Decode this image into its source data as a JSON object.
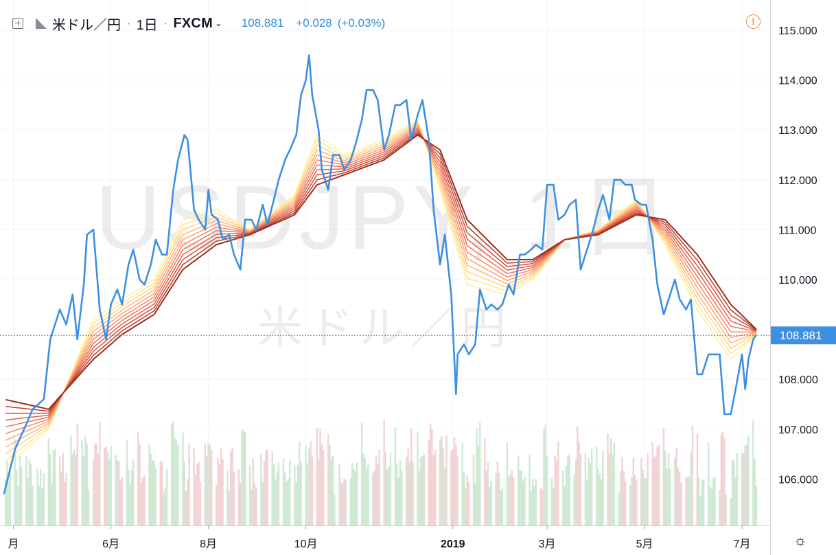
{
  "header": {
    "symbol_name": "米ドル／円",
    "interval": "1日",
    "exchange": "FXCM",
    "last_price": "108.881",
    "change": "+0.028",
    "change_pct": "(+0.03%)"
  },
  "watermark": {
    "ticker": "USDJPY, 1日",
    "name": "米ドル／円"
  },
  "icons": [
    "add-compare-icon",
    "flag-icon",
    "chevron-down-icon",
    "warning-icon",
    "settings-icon"
  ],
  "colors": {
    "price_line": "#3d8fe3",
    "last_price_label_bg": "#3d8fe3",
    "volume_up": "#cfe8d2",
    "volume_down": "#f2d3d3",
    "ribbon": [
      "#fff0a0",
      "#ffe58c",
      "#ffd184",
      "#ffb77a",
      "#ff9f72",
      "#fa8866",
      "#ee7258",
      "#e06048",
      "#cf4e38",
      "#b83c28",
      "#9a2e1c"
    ]
  },
  "chart_data": {
    "type": "line",
    "title": "",
    "xlabel": "",
    "ylabel": "",
    "ylim": [
      105.3,
      115.4
    ],
    "y_ticks": [
      "115.000",
      "114.000",
      "113.000",
      "112.000",
      "111.000",
      "110.000",
      "108.000",
      "107.000",
      "106.000"
    ],
    "last_value_label": "108.881",
    "x_ticks": [
      "月",
      "6月",
      "8月",
      "10月",
      "2019",
      "3月",
      "5月",
      "7月"
    ],
    "x_tick_dates": [
      "2018-04-01",
      "2018-06-01",
      "2018-08-01",
      "2018-10-01",
      "2019-01-01",
      "2019-03-01",
      "2019-05-01",
      "2019-07-01"
    ],
    "x_range": [
      "2018-03-27",
      "2019-07-10"
    ],
    "series": [
      {
        "kind": "price",
        "points": [
          [
            "2018-03-26",
            105.7
          ],
          [
            "2018-04-02",
            106.6
          ],
          [
            "2018-04-09",
            107.1
          ],
          [
            "2018-04-13",
            107.4
          ],
          [
            "2018-04-20",
            107.6
          ],
          [
            "2018-04-24",
            108.8
          ],
          [
            "2018-04-30",
            109.4
          ],
          [
            "2018-05-04",
            109.1
          ],
          [
            "2018-05-08",
            109.7
          ],
          [
            "2018-05-11",
            108.8
          ],
          [
            "2018-05-15",
            109.9
          ],
          [
            "2018-05-17",
            110.9
          ],
          [
            "2018-05-21",
            111.0
          ],
          [
            "2018-05-23",
            110.2
          ],
          [
            "2018-05-25",
            109.4
          ],
          [
            "2018-05-29",
            108.8
          ],
          [
            "2018-06-01",
            109.5
          ],
          [
            "2018-06-05",
            109.8
          ],
          [
            "2018-06-08",
            109.5
          ],
          [
            "2018-06-12",
            110.3
          ],
          [
            "2018-06-15",
            110.6
          ],
          [
            "2018-06-19",
            110.0
          ],
          [
            "2018-06-22",
            109.9
          ],
          [
            "2018-06-26",
            110.3
          ],
          [
            "2018-06-29",
            110.8
          ],
          [
            "2018-07-03",
            110.5
          ],
          [
            "2018-07-06",
            110.5
          ],
          [
            "2018-07-10",
            111.8
          ],
          [
            "2018-07-13",
            112.4
          ],
          [
            "2018-07-17",
            112.9
          ],
          [
            "2018-07-19",
            112.8
          ],
          [
            "2018-07-23",
            111.4
          ],
          [
            "2018-07-26",
            111.2
          ],
          [
            "2018-07-30",
            111.0
          ],
          [
            "2018-08-01",
            111.8
          ],
          [
            "2018-08-03",
            111.3
          ],
          [
            "2018-08-07",
            111.2
          ],
          [
            "2018-08-10",
            110.8
          ],
          [
            "2018-08-14",
            110.9
          ],
          [
            "2018-08-17",
            110.5
          ],
          [
            "2018-08-21",
            110.2
          ],
          [
            "2018-08-24",
            111.2
          ],
          [
            "2018-08-28",
            111.2
          ],
          [
            "2018-08-31",
            111.0
          ],
          [
            "2018-09-04",
            111.5
          ],
          [
            "2018-09-07",
            111.1
          ],
          [
            "2018-09-11",
            111.6
          ],
          [
            "2018-09-14",
            112.0
          ],
          [
            "2018-09-18",
            112.4
          ],
          [
            "2018-09-21",
            112.6
          ],
          [
            "2018-09-25",
            112.9
          ],
          [
            "2018-09-28",
            113.7
          ],
          [
            "2018-10-01",
            114.0
          ],
          [
            "2018-10-03",
            114.5
          ],
          [
            "2018-10-05",
            113.7
          ],
          [
            "2018-10-09",
            113.0
          ],
          [
            "2018-10-11",
            112.2
          ],
          [
            "2018-10-15",
            111.8
          ],
          [
            "2018-10-18",
            112.5
          ],
          [
            "2018-10-22",
            112.5
          ],
          [
            "2018-10-25",
            112.2
          ],
          [
            "2018-10-29",
            112.4
          ],
          [
            "2018-11-01",
            112.7
          ],
          [
            "2018-11-05",
            113.2
          ],
          [
            "2018-11-08",
            113.8
          ],
          [
            "2018-11-12",
            113.8
          ],
          [
            "2018-11-15",
            113.6
          ],
          [
            "2018-11-19",
            112.6
          ],
          [
            "2018-11-22",
            112.9
          ],
          [
            "2018-11-26",
            113.5
          ],
          [
            "2018-11-29",
            113.5
          ],
          [
            "2018-12-03",
            113.6
          ],
          [
            "2018-12-06",
            112.8
          ],
          [
            "2018-12-10",
            113.3
          ],
          [
            "2018-12-13",
            113.6
          ],
          [
            "2018-12-17",
            112.8
          ],
          [
            "2018-12-20",
            111.4
          ],
          [
            "2018-12-24",
            110.3
          ],
          [
            "2018-12-27",
            110.9
          ],
          [
            "2018-12-31",
            109.7
          ],
          [
            "2019-01-03",
            107.7
          ],
          [
            "2019-01-04",
            108.5
          ],
          [
            "2019-01-08",
            108.7
          ],
          [
            "2019-01-11",
            108.5
          ],
          [
            "2019-01-15",
            108.7
          ],
          [
            "2019-01-18",
            109.8
          ],
          [
            "2019-01-22",
            109.4
          ],
          [
            "2019-01-25",
            109.5
          ],
          [
            "2019-01-29",
            109.4
          ],
          [
            "2019-02-01",
            109.5
          ],
          [
            "2019-02-05",
            109.9
          ],
          [
            "2019-02-08",
            109.7
          ],
          [
            "2019-02-12",
            110.5
          ],
          [
            "2019-02-15",
            110.5
          ],
          [
            "2019-02-19",
            110.6
          ],
          [
            "2019-02-22",
            110.7
          ],
          [
            "2019-02-26",
            110.6
          ],
          [
            "2019-03-01",
            111.9
          ],
          [
            "2019-03-05",
            111.9
          ],
          [
            "2019-03-08",
            111.2
          ],
          [
            "2019-03-12",
            111.3
          ],
          [
            "2019-03-15",
            111.5
          ],
          [
            "2019-03-19",
            111.6
          ],
          [
            "2019-03-22",
            110.2
          ],
          [
            "2019-03-26",
            110.6
          ],
          [
            "2019-03-29",
            110.9
          ],
          [
            "2019-04-02",
            111.4
          ],
          [
            "2019-04-05",
            111.7
          ],
          [
            "2019-04-09",
            111.2
          ],
          [
            "2019-04-12",
            112.0
          ],
          [
            "2019-04-16",
            112.0
          ],
          [
            "2019-04-19",
            111.9
          ],
          [
            "2019-04-23",
            111.9
          ],
          [
            "2019-04-25",
            111.6
          ],
          [
            "2019-04-29",
            111.5
          ],
          [
            "2019-05-02",
            111.5
          ],
          [
            "2019-05-06",
            110.8
          ],
          [
            "2019-05-09",
            109.9
          ],
          [
            "2019-05-13",
            109.3
          ],
          [
            "2019-05-16",
            109.6
          ],
          [
            "2019-05-20",
            110.0
          ],
          [
            "2019-05-23",
            109.6
          ],
          [
            "2019-05-27",
            109.4
          ],
          [
            "2019-05-30",
            109.6
          ],
          [
            "2019-06-03",
            108.1
          ],
          [
            "2019-06-06",
            108.1
          ],
          [
            "2019-06-10",
            108.5
          ],
          [
            "2019-06-13",
            108.5
          ],
          [
            "2019-06-17",
            108.5
          ],
          [
            "2019-06-20",
            107.3
          ],
          [
            "2019-06-24",
            107.3
          ],
          [
            "2019-06-27",
            107.8
          ],
          [
            "2019-07-01",
            108.5
          ],
          [
            "2019-07-03",
            107.8
          ],
          [
            "2019-07-05",
            108.4
          ],
          [
            "2019-07-08",
            108.8
          ],
          [
            "2019-07-10",
            108.9
          ]
        ]
      },
      {
        "kind": "ribbon_fastest",
        "points": [
          [
            "2018-03-26",
            106.2
          ],
          [
            "2018-04-23",
            107.0
          ],
          [
            "2018-05-21",
            109.2
          ],
          [
            "2018-06-08",
            109.6
          ],
          [
            "2018-06-28",
            110.0
          ],
          [
            "2018-07-16",
            111.2
          ],
          [
            "2018-08-06",
            111.4
          ],
          [
            "2018-08-27",
            111.0
          ],
          [
            "2018-09-24",
            111.7
          ],
          [
            "2018-10-08",
            112.9
          ],
          [
            "2018-10-25",
            112.5
          ],
          [
            "2018-11-19",
            112.8
          ],
          [
            "2018-12-10",
            113.2
          ],
          [
            "2018-12-24",
            111.8
          ],
          [
            "2019-01-10",
            109.9
          ],
          [
            "2019-02-04",
            109.7
          ],
          [
            "2019-02-20",
            110.0
          ],
          [
            "2019-03-12",
            110.8
          ],
          [
            "2019-04-02",
            111.0
          ],
          [
            "2019-04-26",
            111.6
          ],
          [
            "2019-05-14",
            110.7
          ],
          [
            "2019-06-03",
            109.4
          ],
          [
            "2019-06-24",
            108.4
          ],
          [
            "2019-07-10",
            108.9
          ]
        ]
      },
      {
        "kind": "ribbon_slowest",
        "points": [
          [
            "2018-03-26",
            107.6
          ],
          [
            "2018-04-23",
            107.4
          ],
          [
            "2018-05-21",
            108.4
          ],
          [
            "2018-06-08",
            108.9
          ],
          [
            "2018-06-28",
            109.3
          ],
          [
            "2018-07-16",
            110.2
          ],
          [
            "2018-08-06",
            110.7
          ],
          [
            "2018-08-27",
            110.9
          ],
          [
            "2018-09-24",
            111.3
          ],
          [
            "2018-10-08",
            111.9
          ],
          [
            "2018-10-25",
            112.1
          ],
          [
            "2018-11-19",
            112.4
          ],
          [
            "2018-12-10",
            112.9
          ],
          [
            "2018-12-24",
            112.6
          ],
          [
            "2019-01-10",
            111.2
          ],
          [
            "2019-02-04",
            110.4
          ],
          [
            "2019-02-20",
            110.4
          ],
          [
            "2019-03-12",
            110.8
          ],
          [
            "2019-04-02",
            110.9
          ],
          [
            "2019-04-26",
            111.3
          ],
          [
            "2019-05-14",
            111.2
          ],
          [
            "2019-06-03",
            110.5
          ],
          [
            "2019-06-24",
            109.5
          ],
          [
            "2019-07-10",
            109.0
          ]
        ]
      }
    ],
    "ribbon_count": 11
  }
}
